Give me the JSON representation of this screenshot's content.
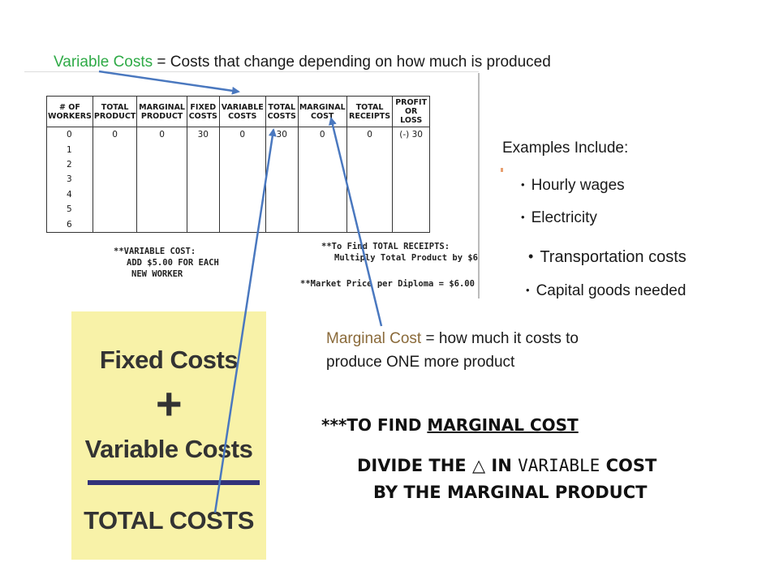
{
  "heading": {
    "term": "Variable Costs",
    "definition": " = Costs that change depending on how much is produced"
  },
  "worksheet": {
    "columns": [
      "# OF WORKERS",
      "TOTAL PRODUCT",
      "MARGINAL PRODUCT",
      "FIXED COSTS",
      "VARIABLE COSTS",
      "TOTAL COSTS",
      "MARGINAL COST",
      "TOTAL RECEIPTS",
      "PROFIT OR LOSS"
    ],
    "rows": [
      [
        "0",
        "0",
        "0",
        "30",
        "0",
        "30",
        "0",
        "0",
        "(-) 30"
      ],
      [
        "1",
        "",
        "",
        "",
        "",
        "",
        "",
        "",
        ""
      ],
      [
        "2",
        "",
        "",
        "",
        "",
        "",
        "",
        "",
        ""
      ],
      [
        "3",
        "",
        "",
        "",
        "",
        "",
        "",
        "",
        ""
      ],
      [
        "4",
        "",
        "",
        "",
        "",
        "",
        "",
        "",
        ""
      ],
      [
        "5",
        "",
        "",
        "",
        "",
        "",
        "",
        "",
        ""
      ],
      [
        "6",
        "",
        "",
        "",
        "",
        "",
        "",
        "",
        ""
      ]
    ],
    "variable_cost_note": {
      "title": "**VARIABLE COST:",
      "line1": "ADD $5.00 FOR EACH",
      "line2": "NEW WORKER"
    },
    "receipts_note": {
      "title": "**To Find TOTAL RECEIPTS:",
      "line1": "Multiply Total Product by $6"
    },
    "market_price_note": "**Market Price per Diploma = $6.00"
  },
  "examples": {
    "label": "Examples Include:",
    "items": [
      "Hourly wages",
      "Electricity",
      "Transportation costs",
      "Capital goods needed"
    ]
  },
  "marginal_cost_def": {
    "term": "Marginal Cost",
    "line1": " = how much it costs to",
    "line2": "produce ONE more product"
  },
  "card": {
    "fixed": "Fixed Costs",
    "plus": "+",
    "variable": "Variable Costs",
    "total": "TOTAL COSTS"
  },
  "instruction": {
    "stars": "***",
    "to_find": "TO FIND ",
    "marginal_cost": "MARGINAL COST",
    "divide": "DIVIDE THE ",
    "delta": "△",
    "in": " IN ",
    "variable": "VARIABLE",
    "cost": " COST",
    "by_the": "BY THE ",
    "marginal_product": "MARGINAL PRODUCT"
  },
  "colors": {
    "variable_term": "#2eaa46",
    "marginal_term": "#8a6a3a",
    "arrow": "#4a78bf",
    "card_bg": "#f8f2a8"
  }
}
